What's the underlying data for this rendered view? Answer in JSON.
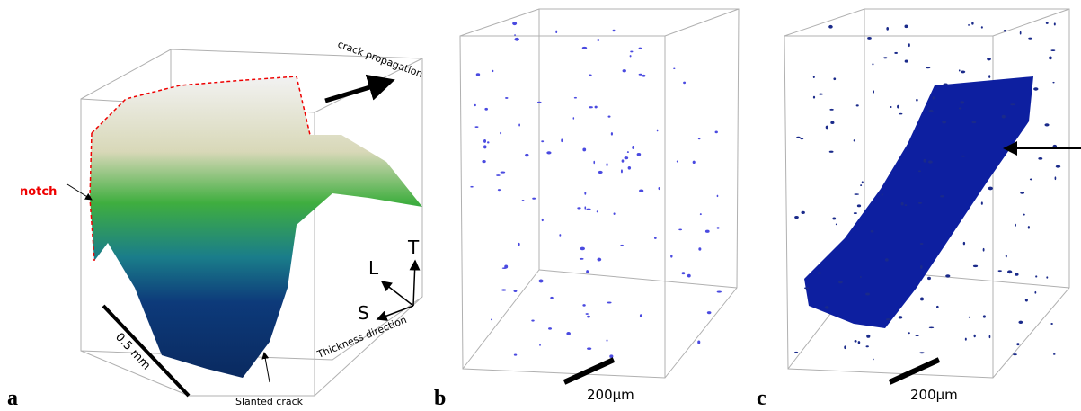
{
  "panels": [
    {
      "label": "a",
      "texts": {
        "propagation": "crack propagation",
        "notch": "notch",
        "axis_l": "L",
        "axis_t": "T",
        "axis_s": "S",
        "thickness": "Thickness direction",
        "scale": "0.5 mm",
        "slanted": "Slanted crack"
      }
    },
    {
      "label": "b",
      "scale": "200μm"
    },
    {
      "label": "c",
      "scale": "200μm"
    }
  ]
}
